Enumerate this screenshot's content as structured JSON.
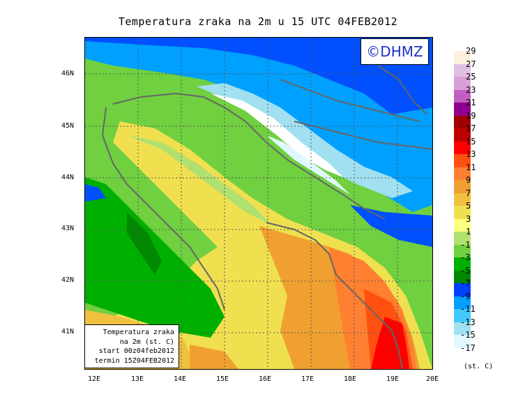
{
  "title": "Temperatura zraka na 2m u 15 UTC 04FEB2012",
  "copyright": "©DHMZ",
  "info_box": {
    "line1": "Temperatura zraka",
    "line2": "na 2m (st. C)",
    "line3": "start 00z04feb2012",
    "line4": "termin 15Z04FEB2012"
  },
  "lat_labels": [
    "46N",
    "45N",
    "44N",
    "43N",
    "42N",
    "41N"
  ],
  "lon_labels": [
    "12E",
    "13E",
    "14E",
    "15E",
    "16E",
    "17E",
    "18E",
    "19E",
    "20E"
  ],
  "legend": {
    "labels": [
      "29",
      "27",
      "25",
      "23",
      "21",
      "19",
      "17",
      "15",
      "13",
      "11",
      "9",
      "7",
      "5",
      "3",
      "1",
      "-1",
      "-3",
      "-5",
      "-7",
      "-9",
      "-11",
      "-13",
      "-15",
      "-17"
    ],
    "colors": [
      "#fff0e0",
      "#e0c0e0",
      "#d8a0d8",
      "#c060c0",
      "#900090",
      "#a00000",
      "#c00000",
      "#ff0000",
      "#ff5010",
      "#ff8030",
      "#f0a030",
      "#f0c040",
      "#f0e050",
      "#ffff80",
      "#b0e070",
      "#70d040",
      "#00b000",
      "#008800",
      "#0040ff",
      "#00a0ff",
      "#40c8ff",
      "#a0e0f0",
      "#e0f8ff",
      "#ffffff"
    ],
    "unit": "(st. C)"
  },
  "colors": {
    "land_green": "#6ccc44",
    "copyright_text": "#1c2fc9",
    "border_gray": "#666666"
  }
}
